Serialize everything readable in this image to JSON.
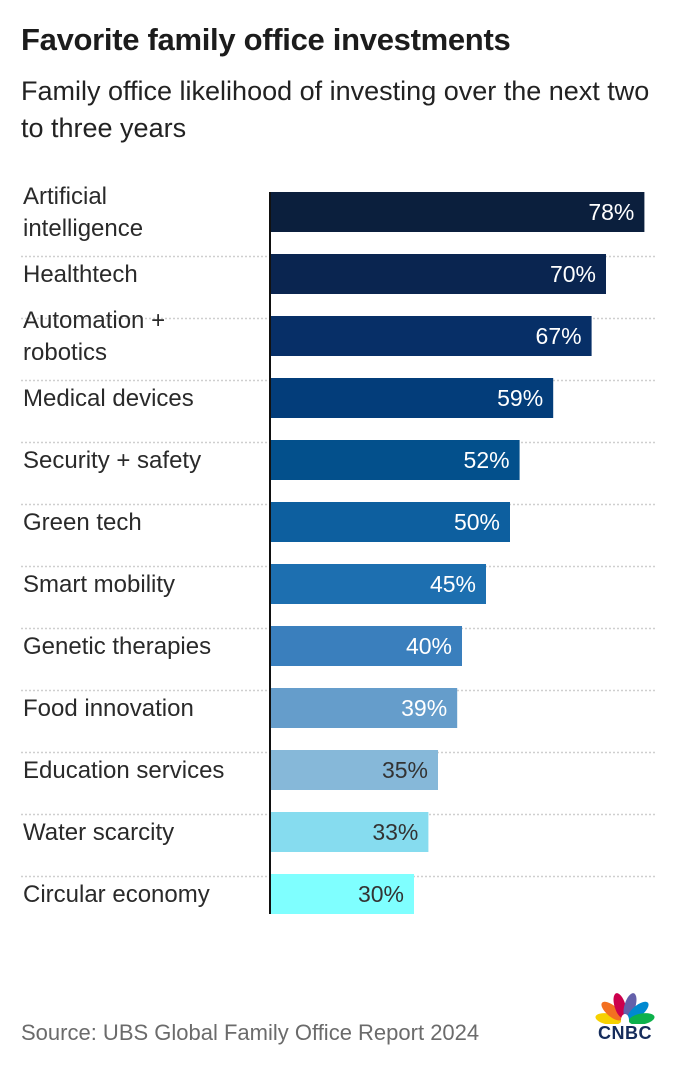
{
  "header": {
    "title": "Favorite family office investments",
    "subtitle": "Family office likelihood of investing over the next two to three years"
  },
  "footer": {
    "source": "Source: UBS Global Family Office Report 2024",
    "logo_text": "CNBC",
    "logo_icon": "nbc-peacock-icon",
    "logo_colors": [
      "#f6d100",
      "#f37021",
      "#cc004c",
      "#6460aa",
      "#0089d0",
      "#0db14b"
    ]
  },
  "chart_data": {
    "type": "bar",
    "orientation": "horizontal",
    "title": "Favorite family office investments",
    "subtitle": "Family office likelihood of investing over the next two to three years",
    "xlabel": "",
    "ylabel": "",
    "xlim": [
      0,
      100
    ],
    "grid": false,
    "legend": "none",
    "value_suffix": "%",
    "categories": [
      [
        "Artificial",
        "intelligence"
      ],
      [
        "Healthtech"
      ],
      [
        "Automation +",
        "robotics"
      ],
      [
        "Medical devices"
      ],
      [
        "Security + safety"
      ],
      [
        "Green tech"
      ],
      [
        "Smart mobility"
      ],
      [
        "Genetic therapies"
      ],
      [
        "Food innovation"
      ],
      [
        "Education services"
      ],
      [
        "Water scarcity"
      ],
      [
        "Circular economy"
      ]
    ],
    "values": [
      78,
      70,
      67,
      59,
      52,
      50,
      45,
      40,
      39,
      35,
      33,
      30
    ],
    "value_labels": [
      "78%",
      "70%",
      "67%",
      "59%",
      "52%",
      "50%",
      "45%",
      "40%",
      "39%",
      "35%",
      "33%",
      "30%"
    ],
    "colors": [
      "#0b1f3d",
      "#0a2550",
      "#072f67",
      "#033d7a",
      "#03508c",
      "#0d5f9f",
      "#1d6fb0",
      "#3a7fbd",
      "#659dcb",
      "#86b8d9",
      "#86dcef",
      "#7fffff"
    ],
    "label_colors": [
      "#ffffff",
      "#ffffff",
      "#ffffff",
      "#ffffff",
      "#ffffff",
      "#ffffff",
      "#ffffff",
      "#ffffff",
      "#ffffff",
      "#333333",
      "#333333",
      "#333333"
    ],
    "source": "Source: UBS Global Family Office Report 2024"
  }
}
